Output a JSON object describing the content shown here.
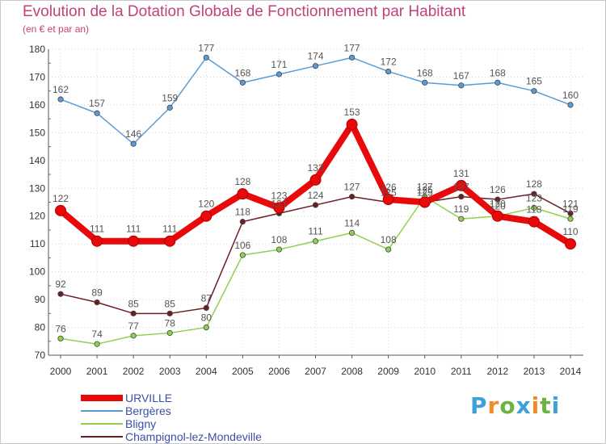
{
  "title": "Evolution de la Dotation Globale de Fonctionnement par Habitant",
  "subtitle": "(en € et par an)",
  "logo": {
    "letters": [
      "P",
      "r",
      "o",
      "x",
      "i",
      "t",
      "i"
    ],
    "colors": [
      "#3da0d9",
      "#f28c28",
      "#6cb33f",
      "#3da0d9",
      "#f28c28",
      "#6cb33f",
      "#3da0d9"
    ]
  },
  "chart_data": {
    "type": "line",
    "title": "Evolution de la Dotation Globale de Fonctionnement par Habitant",
    "subtitle": "(en € et par an)",
    "x": [
      "2000",
      "2001",
      "2002",
      "2003",
      "2004",
      "2005",
      "2006",
      "2007",
      "2008",
      "2009",
      "2010",
      "2011",
      "2012",
      "2013",
      "2014"
    ],
    "ylim": [
      70,
      180
    ],
    "yticks": [
      "70",
      "80",
      "90",
      "100",
      "110",
      "120",
      "130",
      "140",
      "150",
      "160",
      "170",
      "180"
    ],
    "grid": true,
    "legend_position": "bottom-left",
    "series": [
      {
        "name": "URVILLE",
        "color": "#e8090a",
        "emphasis": true,
        "values": [
          122,
          111,
          111,
          111,
          120,
          128,
          123,
          133,
          153,
          126,
          125,
          131,
          120,
          118,
          110
        ],
        "labels": [
          "122",
          "111",
          "111",
          "111",
          "120",
          "128",
          "123",
          "133",
          "153",
          "126",
          "125",
          "131",
          "120",
          "118",
          "110"
        ]
      },
      {
        "name": "Bergères",
        "color": "#5b9bd5",
        "emphasis": false,
        "values": [
          162,
          157,
          146,
          159,
          177,
          168,
          171,
          174,
          177,
          172,
          168,
          167,
          168,
          165,
          160
        ],
        "labels": [
          "162",
          "157",
          "146",
          "159",
          "177",
          "168",
          "171",
          "174",
          "177",
          "172",
          "168",
          "167",
          "168",
          "165",
          "160"
        ]
      },
      {
        "name": "Bligny",
        "color": "#8fd14f",
        "emphasis": false,
        "values": [
          76,
          74,
          77,
          78,
          80,
          106,
          108,
          111,
          114,
          108,
          127,
          119,
          120,
          123,
          119
        ],
        "labels": [
          "76",
          "74",
          "77",
          "78",
          "80",
          "106",
          "108",
          "111",
          "114",
          "108",
          "127",
          "119",
          "120",
          "123",
          "119"
        ]
      },
      {
        "name": "Champignol-lez-Mondeville",
        "color": "#6b1f24",
        "emphasis": false,
        "values": [
          92,
          89,
          85,
          85,
          87,
          118,
          121,
          124,
          127,
          125,
          125,
          127,
          126,
          128,
          121
        ],
        "labels": [
          "92",
          "89",
          "85",
          "85",
          "87",
          "118",
          "121",
          "124",
          "127",
          "125",
          "125",
          "127",
          "126",
          "128",
          "121"
        ]
      }
    ]
  }
}
